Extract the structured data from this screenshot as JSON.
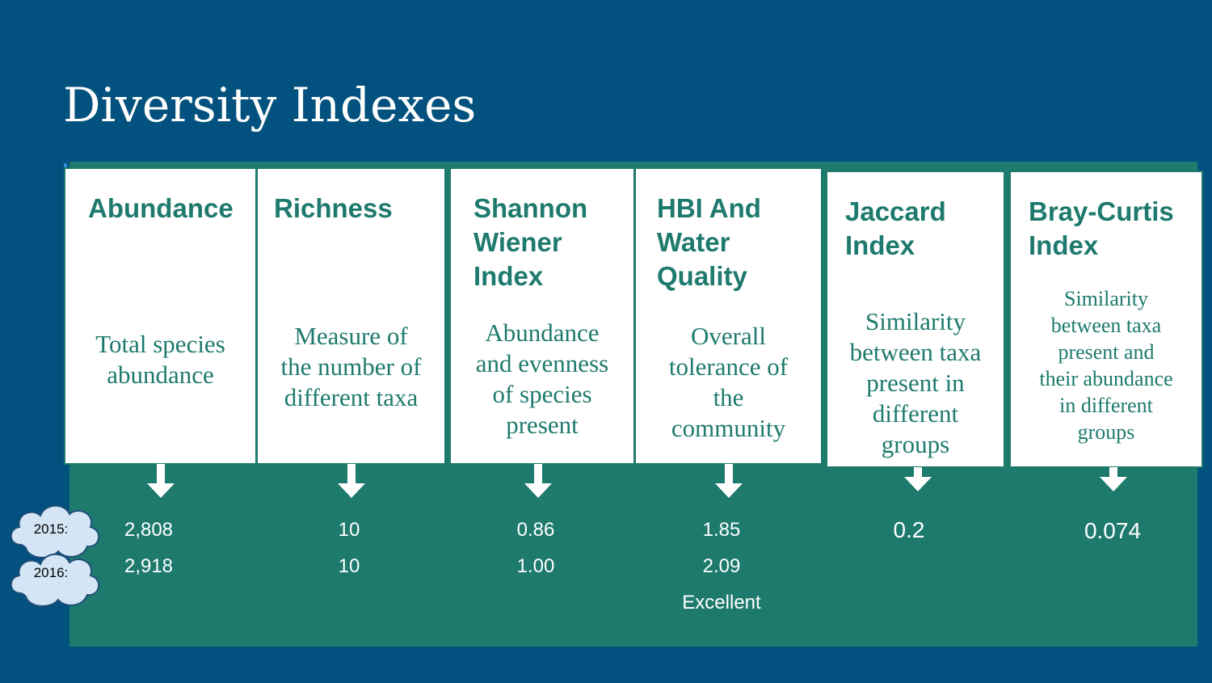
{
  "title": "Diversity Indexes",
  "cards": [
    {
      "title": "Abundance",
      "desc": "Total species\nabundance"
    },
    {
      "title": "Richness",
      "desc": "Measure of\nthe number of\ndifferent taxa"
    },
    {
      "title": "Shannon\nWiener\nIndex",
      "desc": "Abundance\nand evenness\nof species\npresent"
    },
    {
      "title": "HBI And\nWater\nQuality",
      "desc": "Overall\ntolerance of\nthe\ncommunity"
    },
    {
      "title": "Jaccard\nIndex",
      "desc": "Similarity\nbetween taxa\npresent in\ndifferent\ngroups"
    },
    {
      "title": "Bray-Curtis\nIndex",
      "desc": "Similarity\nbetween taxa\npresent and\ntheir abundance\nin different\ngroups"
    }
  ],
  "years": {
    "y2015": "2015:",
    "y2016": "2016:"
  },
  "values": {
    "abundance": {
      "y2015": "2,808",
      "y2016": "2,918"
    },
    "richness": {
      "y2015": "10",
      "y2016": "10"
    },
    "shannon": {
      "y2015": "0.86",
      "y2016": "1.00"
    },
    "hbi": {
      "y2015": "1.85",
      "y2016": "2.09",
      "rating": "Excellent"
    },
    "jaccard": {
      "value": "0.2"
    },
    "bray_curtis": {
      "value": "0.074"
    }
  },
  "colors": {
    "background": "#03517e",
    "panel": "#1e7a6d",
    "card": "#ffffff",
    "cloud": "#d4e6f5"
  }
}
